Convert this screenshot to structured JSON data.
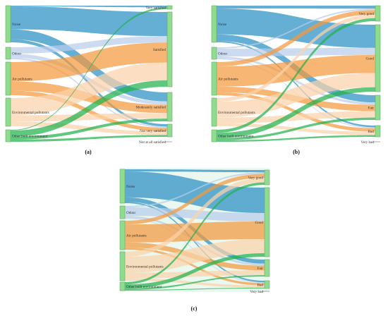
{
  "panels": [
    {
      "label": "(a)",
      "sources": [
        "Noise",
        "Odour",
        "Air pollutants",
        "Environmental pollutants",
        "Other built environment"
      ],
      "targets": [
        "Very satisfied",
        "Satisfied",
        "Moderately satisfied",
        "Not very satisfied",
        "Not at all satisfied"
      ]
    },
    {
      "label": "(b)",
      "sources": [
        "Noise",
        "Odour",
        "Air pollutants",
        "Environmental pollutants",
        "Other built environment"
      ],
      "targets": [
        "Very good",
        "Good",
        "Fair",
        "Bad",
        "Very bad"
      ]
    },
    {
      "label": "(c)",
      "sources": [
        "Noise",
        "Odour",
        "Air pollutants",
        "Environmental pollutants",
        "Other built environment"
      ],
      "targets": [
        "Very good",
        "Good",
        "Fair",
        "Bad",
        "Very bad"
      ]
    }
  ],
  "colors": {
    "Noise": "#2a8fc3",
    "Odour": "#b9cdea",
    "Air pollutants": "#f49a3e",
    "Environmental pollutants": "#fbd2ab",
    "Other built environment": "#22b14c",
    "node": "#8fdc8f",
    "node_stroke": "#6aa86a"
  }
}
